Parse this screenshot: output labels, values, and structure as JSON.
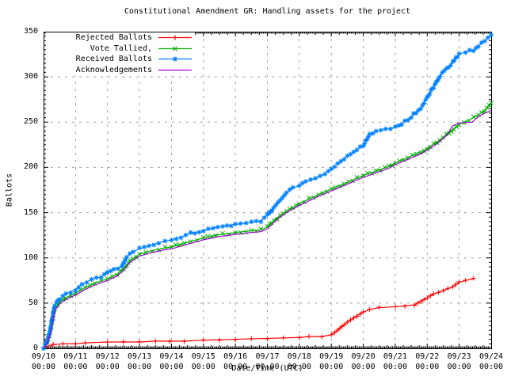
{
  "chart_data": {
    "type": "line",
    "title": "Constitutional Amendment GR: Handling assets for the project",
    "xlabel": "Date/Time (UTC)",
    "ylabel": "Ballots",
    "ylim": [
      0,
      350
    ],
    "x_unit": "days since 09/10 00:00 UTC",
    "x_range_days": 14,
    "grid": true,
    "legend_position": "top-left",
    "y_ticks": [
      0,
      50,
      100,
      150,
      200,
      250,
      300,
      350
    ],
    "x_ticks": [
      {
        "date": "09/10",
        "time": "00:00"
      },
      {
        "date": "09/11",
        "time": "00:00"
      },
      {
        "date": "09/12",
        "time": "00:00"
      },
      {
        "date": "09/13",
        "time": "00:00"
      },
      {
        "date": "09/14",
        "time": "00:00"
      },
      {
        "date": "09/15",
        "time": "00:00"
      },
      {
        "date": "09/16",
        "time": "00:00"
      },
      {
        "date": "09/17",
        "time": "00:00"
      },
      {
        "date": "09/18",
        "time": "00:00"
      },
      {
        "date": "09/19",
        "time": "00:00"
      },
      {
        "date": "09/20",
        "time": "00:00"
      },
      {
        "date": "09/21",
        "time": "00:00"
      },
      {
        "date": "09/22",
        "time": "00:00"
      },
      {
        "date": "09/23",
        "time": "00:00"
      },
      {
        "date": "09/24",
        "time": "00:00"
      }
    ],
    "series": [
      {
        "name": "Rejected Ballots",
        "slug": "rejected-ballots",
        "color": "#ff0000",
        "marker": "plus",
        "points": [
          [
            0,
            0
          ],
          [
            0.1,
            2
          ],
          [
            0.3,
            4
          ],
          [
            0.6,
            5
          ],
          [
            1,
            5
          ],
          [
            1.3,
            6
          ],
          [
            2,
            7
          ],
          [
            3,
            7
          ],
          [
            3.5,
            8
          ],
          [
            4.4,
            8
          ],
          [
            5,
            9
          ],
          [
            6,
            10
          ],
          [
            7,
            11
          ],
          [
            8,
            12
          ],
          [
            8.3,
            13
          ],
          [
            8.7,
            13
          ],
          [
            9,
            15
          ],
          [
            9.2,
            20
          ],
          [
            9.4,
            26
          ],
          [
            9.6,
            31
          ],
          [
            9.8,
            36
          ],
          [
            10,
            40
          ],
          [
            10.2,
            43
          ],
          [
            10.5,
            45
          ],
          [
            11,
            46
          ],
          [
            11.3,
            47
          ],
          [
            11.6,
            48
          ],
          [
            11.8,
            52
          ],
          [
            12,
            56
          ],
          [
            12.2,
            60
          ],
          [
            12.5,
            64
          ],
          [
            12.8,
            68
          ],
          [
            13,
            73
          ],
          [
            13.2,
            75
          ],
          [
            13.45,
            77
          ]
        ]
      },
      {
        "name": "Vote Tallied,",
        "slug": "vote-tallied",
        "color": "#00b000",
        "marker": "cross",
        "points": [
          [
            0,
            0
          ],
          [
            0.1,
            5
          ],
          [
            0.2,
            17
          ],
          [
            0.35,
            44
          ],
          [
            0.5,
            51
          ],
          [
            0.7,
            56
          ],
          [
            1,
            61
          ],
          [
            1.3,
            67
          ],
          [
            1.6,
            72
          ],
          [
            2,
            77
          ],
          [
            2.3,
            82
          ],
          [
            2.5,
            88
          ],
          [
            2.7,
            97
          ],
          [
            3,
            104
          ],
          [
            3.4,
            108
          ],
          [
            3.8,
            111
          ],
          [
            4,
            112
          ],
          [
            4.4,
            116
          ],
          [
            4.8,
            120
          ],
          [
            5,
            122
          ],
          [
            5.4,
            125
          ],
          [
            5.8,
            127
          ],
          [
            6,
            128
          ],
          [
            6.5,
            130
          ],
          [
            6.8,
            131
          ],
          [
            7,
            134
          ],
          [
            7.2,
            141
          ],
          [
            7.4,
            147
          ],
          [
            7.6,
            152
          ],
          [
            7.8,
            156
          ],
          [
            8,
            160
          ],
          [
            8.3,
            165
          ],
          [
            8.6,
            170
          ],
          [
            9,
            176
          ],
          [
            9.4,
            182
          ],
          [
            9.8,
            188
          ],
          [
            10,
            191
          ],
          [
            10.4,
            196
          ],
          [
            10.8,
            201
          ],
          [
            11,
            205
          ],
          [
            11.4,
            211
          ],
          [
            11.8,
            217
          ],
          [
            12,
            221
          ],
          [
            12.3,
            228
          ],
          [
            12.6,
            236
          ],
          [
            13,
            248
          ],
          [
            13.3,
            252
          ],
          [
            13.6,
            258
          ],
          [
            13.8,
            263
          ],
          [
            14,
            270
          ]
        ]
      },
      {
        "name": "Received Ballots",
        "slug": "received-ballots",
        "color": "#0080ff",
        "marker": "star",
        "points": [
          [
            0,
            0
          ],
          [
            0.1,
            6
          ],
          [
            0.2,
            20
          ],
          [
            0.35,
            48
          ],
          [
            0.5,
            55
          ],
          [
            0.7,
            60
          ],
          [
            1,
            65
          ],
          [
            1.2,
            71
          ],
          [
            1.5,
            76
          ],
          [
            1.8,
            79
          ],
          [
            2,
            83
          ],
          [
            2.2,
            87
          ],
          [
            2.45,
            91
          ],
          [
            2.6,
            101
          ],
          [
            2.8,
            107
          ],
          [
            3,
            110
          ],
          [
            3.3,
            113
          ],
          [
            3.6,
            117
          ],
          [
            4,
            120
          ],
          [
            4.3,
            123
          ],
          [
            4.6,
            127
          ],
          [
            5,
            130
          ],
          [
            5.3,
            133
          ],
          [
            5.6,
            135
          ],
          [
            6,
            137
          ],
          [
            6.5,
            139
          ],
          [
            6.8,
            141
          ],
          [
            7,
            147
          ],
          [
            7.2,
            156
          ],
          [
            7.4,
            164
          ],
          [
            7.6,
            172
          ],
          [
            7.8,
            177
          ],
          [
            8,
            180
          ],
          [
            8.2,
            184
          ],
          [
            8.5,
            188
          ],
          [
            8.8,
            193
          ],
          [
            9,
            198
          ],
          [
            9.2,
            204
          ],
          [
            9.5,
            212
          ],
          [
            9.8,
            220
          ],
          [
            10,
            224
          ],
          [
            10.2,
            236
          ],
          [
            10.4,
            240
          ],
          [
            10.7,
            242
          ],
          [
            11,
            244
          ],
          [
            11.2,
            248
          ],
          [
            11.5,
            256
          ],
          [
            11.8,
            266
          ],
          [
            12,
            277
          ],
          [
            12.2,
            289
          ],
          [
            12.4,
            301
          ],
          [
            12.6,
            309
          ],
          [
            12.8,
            316
          ],
          [
            13,
            325
          ],
          [
            13.2,
            328
          ],
          [
            13.45,
            329
          ],
          [
            13.6,
            334
          ],
          [
            13.8,
            340
          ],
          [
            14,
            346
          ]
        ]
      },
      {
        "name": "Acknowledgements",
        "slug": "acknowledgements",
        "color": "#a000d0",
        "marker": "none",
        "points": [
          [
            0,
            0
          ],
          [
            0.1,
            4
          ],
          [
            0.2,
            15
          ],
          [
            0.35,
            42
          ],
          [
            0.5,
            49
          ],
          [
            0.7,
            54
          ],
          [
            1,
            59
          ],
          [
            1.3,
            65
          ],
          [
            1.6,
            70
          ],
          [
            2,
            75
          ],
          [
            2.3,
            80
          ],
          [
            2.5,
            86
          ],
          [
            2.7,
            95
          ],
          [
            3,
            102
          ],
          [
            3.4,
            106
          ],
          [
            3.8,
            109
          ],
          [
            4,
            110
          ],
          [
            4.4,
            114
          ],
          [
            4.8,
            118
          ],
          [
            5,
            120
          ],
          [
            5.4,
            123
          ],
          [
            5.8,
            125
          ],
          [
            6,
            126
          ],
          [
            6.5,
            128
          ],
          [
            6.8,
            129
          ],
          [
            7,
            132
          ],
          [
            7.2,
            139
          ],
          [
            7.4,
            145
          ],
          [
            7.6,
            150
          ],
          [
            7.8,
            154
          ],
          [
            8,
            158
          ],
          [
            8.3,
            163
          ],
          [
            8.6,
            168
          ],
          [
            9,
            174
          ],
          [
            9.4,
            180
          ],
          [
            9.8,
            186
          ],
          [
            10,
            189
          ],
          [
            10.4,
            194
          ],
          [
            10.8,
            199
          ],
          [
            11,
            203
          ],
          [
            11.4,
            209
          ],
          [
            11.8,
            215
          ],
          [
            12,
            219
          ],
          [
            12.3,
            226
          ],
          [
            12.6,
            235
          ],
          [
            12.8,
            246
          ],
          [
            13,
            249
          ],
          [
            13.4,
            250
          ],
          [
            13.6,
            256
          ],
          [
            13.8,
            260
          ],
          [
            14,
            263
          ]
        ]
      }
    ]
  },
  "colors": {
    "background": "#ffffff",
    "border": "#000000",
    "grid": "#a0a0a0",
    "text": "#000000"
  }
}
